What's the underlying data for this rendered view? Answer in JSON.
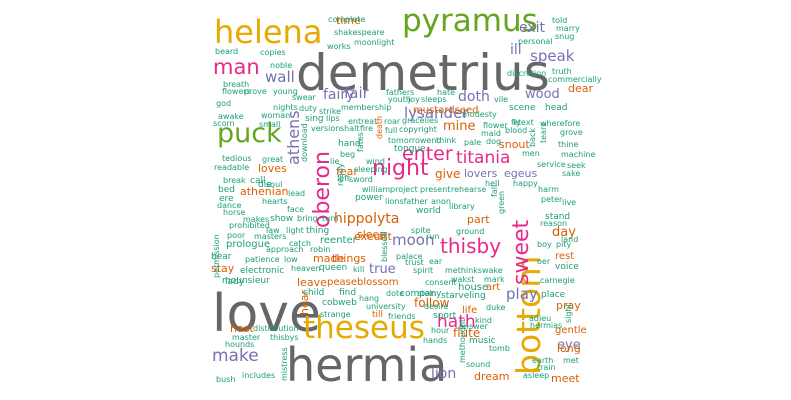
{
  "palette": {
    "teal": "#1b9e77",
    "orange": "#d95f02",
    "purple": "#7570b3",
    "magenta": "#e7298a",
    "green": "#66a61e",
    "gold": "#e6ab02",
    "gray": "#666666"
  },
  "words": [
    {
      "text": "demetrius",
      "color": "gray"
    },
    {
      "text": "love",
      "color": "gray"
    },
    {
      "text": "hermia",
      "color": "gray"
    },
    {
      "text": "theseus",
      "color": "gold"
    },
    {
      "text": "bottom",
      "color": "gold"
    },
    {
      "text": "helena",
      "color": "gold"
    },
    {
      "text": "pyramus",
      "color": "green"
    },
    {
      "text": "puck",
      "color": "green"
    },
    {
      "text": "sweet",
      "color": "magenta"
    },
    {
      "text": "thisby",
      "color": "magenta"
    },
    {
      "text": "night",
      "color": "magenta"
    },
    {
      "text": "man",
      "color": "magenta"
    },
    {
      "text": "oberon",
      "color": "magenta"
    },
    {
      "text": "enter",
      "color": "magenta"
    },
    {
      "text": "titania",
      "color": "magenta"
    },
    {
      "text": "hath",
      "color": "magenta"
    },
    {
      "text": "lysander",
      "color": "purple"
    },
    {
      "text": "make",
      "color": "purple"
    },
    {
      "text": "wall",
      "color": "purple"
    },
    {
      "text": "fair",
      "color": "purple"
    },
    {
      "text": "fairy",
      "color": "purple"
    },
    {
      "text": "moon",
      "color": "purple"
    },
    {
      "text": "play",
      "color": "purple"
    },
    {
      "text": "speak",
      "color": "purple"
    },
    {
      "text": "exit",
      "color": "purple"
    },
    {
      "text": "athens",
      "color": "purple"
    },
    {
      "text": "doth",
      "color": "purple"
    },
    {
      "text": "wood",
      "color": "purple"
    },
    {
      "text": "lion",
      "color": "purple"
    },
    {
      "text": "true",
      "color": "purple"
    },
    {
      "text": "eye",
      "color": "purple"
    },
    {
      "text": "ill",
      "color": "purple"
    },
    {
      "text": "hippolyta",
      "color": "orange"
    },
    {
      "text": "mine",
      "color": "orange"
    },
    {
      "text": "give",
      "color": "orange"
    },
    {
      "text": "day",
      "color": "orange"
    },
    {
      "text": "dear",
      "color": "orange"
    },
    {
      "text": "exeunt",
      "color": "orange"
    },
    {
      "text": "sleep",
      "color": "orange"
    },
    {
      "text": "loves",
      "color": "orange"
    },
    {
      "text": "follow",
      "color": "orange"
    },
    {
      "text": "flute",
      "color": "orange"
    },
    {
      "text": "long",
      "color": "orange"
    },
    {
      "text": "pray",
      "color": "orange"
    },
    {
      "text": "dream",
      "color": "orange"
    },
    {
      "text": "meet",
      "color": "orange"
    },
    {
      "text": "hast",
      "color": "orange"
    },
    {
      "text": "snout",
      "color": "orange"
    },
    {
      "text": "stay",
      "color": "orange"
    },
    {
      "text": "time",
      "color": "orange"
    },
    {
      "text": "athenian",
      "color": "orange"
    },
    {
      "text": "leave",
      "color": "orange"
    },
    {
      "text": "things",
      "color": "orange"
    },
    {
      "text": "made",
      "color": "orange"
    },
    {
      "text": "part",
      "color": "orange"
    },
    {
      "text": "art",
      "color": "orange"
    },
    {
      "text": "mustardseed",
      "color": "orange"
    },
    {
      "text": "peaseblossom",
      "color": "orange"
    },
    {
      "text": "gentle",
      "color": "orange"
    },
    {
      "text": "rest",
      "color": "orange"
    },
    {
      "text": "fear",
      "color": "orange"
    },
    {
      "text": "till",
      "color": "orange"
    },
    {
      "text": "hear",
      "color": "orange"
    },
    {
      "text": "life",
      "color": "orange"
    },
    {
      "text": "house",
      "color": "teal"
    },
    {
      "text": "egeus",
      "color": "purple"
    },
    {
      "text": "lovers",
      "color": "purple"
    },
    {
      "text": "reenter",
      "color": "teal"
    },
    {
      "text": "prologue",
      "color": "teal"
    },
    {
      "text": "queen",
      "color": "teal"
    },
    {
      "text": "cobweb",
      "color": "teal"
    },
    {
      "text": "child",
      "color": "teal"
    },
    {
      "text": "find",
      "color": "teal"
    },
    {
      "text": "electronic",
      "color": "teal"
    },
    {
      "text": "mounsieur",
      "color": "teal"
    },
    {
      "text": "starveling",
      "color": "teal"
    },
    {
      "text": "sport",
      "color": "teal"
    },
    {
      "text": "music",
      "color": "teal"
    },
    {
      "text": "place",
      "color": "teal"
    },
    {
      "text": "voice",
      "color": "teal"
    },
    {
      "text": "stand",
      "color": "teal"
    },
    {
      "text": "head",
      "color": "teal"
    },
    {
      "text": "scene",
      "color": "teal"
    },
    {
      "text": "tongue",
      "color": "teal"
    },
    {
      "text": "hand",
      "color": "teal"
    },
    {
      "text": "call",
      "color": "teal"
    },
    {
      "text": "die",
      "color": "teal"
    },
    {
      "text": "bed",
      "color": "teal"
    },
    {
      "text": "show",
      "color": "teal"
    },
    {
      "text": "thing",
      "color": "teal"
    },
    {
      "text": "power",
      "color": "teal"
    },
    {
      "text": "world",
      "color": "teal"
    },
    {
      "text": "company",
      "color": "teal"
    },
    {
      "text": "sing",
      "color": "teal"
    },
    {
      "text": "bear",
      "color": "teal"
    },
    {
      "text": "ere",
      "color": "teal"
    },
    {
      "text": "lady",
      "color": "teal"
    },
    {
      "text": "master",
      "color": "teal"
    },
    {
      "text": "hounds",
      "color": "teal"
    },
    {
      "text": "bush",
      "color": "teal"
    },
    {
      "text": "includes",
      "color": "teal"
    },
    {
      "text": "distribution",
      "color": "teal"
    },
    {
      "text": "thisbys",
      "color": "teal"
    },
    {
      "text": "strange",
      "color": "teal"
    },
    {
      "text": "friends",
      "color": "teal"
    },
    {
      "text": "hands",
      "color": "teal"
    },
    {
      "text": "hour",
      "color": "teal"
    },
    {
      "text": "answer",
      "color": "teal"
    },
    {
      "text": "sound",
      "color": "teal"
    },
    {
      "text": "earth",
      "color": "teal"
    },
    {
      "text": "train",
      "color": "teal"
    },
    {
      "text": "asleep",
      "color": "teal"
    },
    {
      "text": "adieu",
      "color": "teal"
    },
    {
      "text": "hermias",
      "color": "teal"
    },
    {
      "text": "met",
      "color": "teal"
    },
    {
      "text": "sight",
      "color": "teal"
    },
    {
      "text": "carnegie",
      "color": "teal"
    },
    {
      "text": "oer",
      "color": "teal"
    },
    {
      "text": "land",
      "color": "teal"
    },
    {
      "text": "pity",
      "color": "teal"
    },
    {
      "text": "boy",
      "color": "teal"
    },
    {
      "text": "reason",
      "color": "teal"
    },
    {
      "text": "peter",
      "color": "teal"
    },
    {
      "text": "live",
      "color": "teal"
    },
    {
      "text": "harm",
      "color": "teal"
    },
    {
      "text": "sake",
      "color": "teal"
    },
    {
      "text": "seek",
      "color": "teal"
    },
    {
      "text": "service",
      "color": "teal"
    },
    {
      "text": "machine",
      "color": "teal"
    },
    {
      "text": "men",
      "color": "teal"
    },
    {
      "text": "thine",
      "color": "teal"
    },
    {
      "text": "grove",
      "color": "teal"
    },
    {
      "text": "wherefore",
      "color": "teal"
    },
    {
      "text": "etext",
      "color": "teal"
    },
    {
      "text": "truth",
      "color": "teal"
    },
    {
      "text": "commercially",
      "color": "teal"
    },
    {
      "text": "discretion",
      "color": "teal"
    },
    {
      "text": "personal",
      "color": "teal"
    },
    {
      "text": "snug",
      "color": "teal"
    },
    {
      "text": "marry",
      "color": "teal"
    },
    {
      "text": "told",
      "color": "teal"
    },
    {
      "text": "complete",
      "color": "teal"
    },
    {
      "text": "shakespeare",
      "color": "teal"
    },
    {
      "text": "works",
      "color": "teal"
    },
    {
      "text": "moonlight",
      "color": "teal"
    },
    {
      "text": "beard",
      "color": "teal"
    },
    {
      "text": "copies",
      "color": "teal"
    },
    {
      "text": "noble",
      "color": "teal"
    },
    {
      "text": "breath",
      "color": "teal"
    },
    {
      "text": "flowers",
      "color": "teal"
    },
    {
      "text": "prove",
      "color": "teal"
    },
    {
      "text": "young",
      "color": "teal"
    },
    {
      "text": "swear",
      "color": "teal"
    },
    {
      "text": "god",
      "color": "teal"
    },
    {
      "text": "awake",
      "color": "teal"
    },
    {
      "text": "scorn",
      "color": "teal"
    },
    {
      "text": "woman",
      "color": "teal"
    },
    {
      "text": "small",
      "color": "teal"
    },
    {
      "text": "nights",
      "color": "teal"
    },
    {
      "text": "duty",
      "color": "teal"
    },
    {
      "text": "strike",
      "color": "teal"
    },
    {
      "text": "membership",
      "color": "teal"
    },
    {
      "text": "fathers",
      "color": "teal"
    },
    {
      "text": "youth",
      "color": "teal"
    },
    {
      "text": "joy",
      "color": "teal"
    },
    {
      "text": "sleeps",
      "color": "teal"
    },
    {
      "text": "hate",
      "color": "teal"
    },
    {
      "text": "modesty",
      "color": "teal"
    },
    {
      "text": "vile",
      "color": "teal"
    },
    {
      "text": "lips",
      "color": "teal"
    },
    {
      "text": "version",
      "color": "teal"
    },
    {
      "text": "shalt",
      "color": "teal"
    },
    {
      "text": "fire",
      "color": "teal"
    },
    {
      "text": "entreat",
      "color": "teal"
    },
    {
      "text": "roar",
      "color": "teal"
    },
    {
      "text": "gracelies",
      "color": "teal"
    },
    {
      "text": "copyright",
      "color": "teal"
    },
    {
      "text": "tomorrowend",
      "color": "teal"
    },
    {
      "text": "think",
      "color": "teal"
    },
    {
      "text": "pale",
      "color": "teal"
    },
    {
      "text": "dog",
      "color": "teal"
    },
    {
      "text": "flower",
      "color": "teal"
    },
    {
      "text": "maid",
      "color": "teal"
    },
    {
      "text": "blood",
      "color": "teal"
    },
    {
      "text": "fly",
      "color": "teal"
    },
    {
      "text": "sleeping",
      "color": "teal"
    },
    {
      "text": "full",
      "color": "teal"
    },
    {
      "text": "death",
      "color": "orange"
    },
    {
      "text": "tedious",
      "color": "teal"
    },
    {
      "text": "readable",
      "color": "teal"
    },
    {
      "text": "great",
      "color": "teal"
    },
    {
      "text": "break",
      "color": "teal"
    },
    {
      "text": "soul",
      "color": "teal"
    },
    {
      "text": "lead",
      "color": "teal"
    },
    {
      "text": "dance",
      "color": "teal"
    },
    {
      "text": "hearts",
      "color": "teal"
    },
    {
      "text": "horse",
      "color": "teal"
    },
    {
      "text": "makes",
      "color": "teal"
    },
    {
      "text": "masters",
      "color": "teal"
    },
    {
      "text": "prohibited",
      "color": "teal"
    },
    {
      "text": "law",
      "color": "teal"
    },
    {
      "text": "poor",
      "color": "teal"
    },
    {
      "text": "approach",
      "color": "teal"
    },
    {
      "text": "patience",
      "color": "teal"
    },
    {
      "text": "low",
      "color": "teal"
    },
    {
      "text": "heaven",
      "color": "teal"
    },
    {
      "text": "catch",
      "color": "teal"
    },
    {
      "text": "robin",
      "color": "teal"
    },
    {
      "text": "bring",
      "color": "teal"
    },
    {
      "text": "turn",
      "color": "teal"
    },
    {
      "text": "face",
      "color": "teal"
    },
    {
      "text": "light",
      "color": "teal"
    },
    {
      "text": "kill",
      "color": "teal"
    },
    {
      "text": "left",
      "color": "teal"
    },
    {
      "text": "sword",
      "color": "teal"
    },
    {
      "text": "wind",
      "color": "teal"
    },
    {
      "text": "william",
      "color": "teal"
    },
    {
      "text": "project",
      "color": "teal"
    },
    {
      "text": "present",
      "color": "teal"
    },
    {
      "text": "rehearse",
      "color": "teal"
    },
    {
      "text": "lionsfather",
      "color": "teal"
    },
    {
      "text": "anon",
      "color": "teal"
    },
    {
      "text": "library",
      "color": "teal"
    },
    {
      "text": "spite",
      "color": "teal"
    },
    {
      "text": "ground",
      "color": "teal"
    },
    {
      "text": "run",
      "color": "teal"
    },
    {
      "text": "trust",
      "color": "teal"
    },
    {
      "text": "ear",
      "color": "teal"
    },
    {
      "text": "palace",
      "color": "teal"
    },
    {
      "text": "spirit",
      "color": "teal"
    },
    {
      "text": "methinkswake",
      "color": "teal"
    },
    {
      "text": "consent",
      "color": "teal"
    },
    {
      "text": "wakst",
      "color": "teal"
    },
    {
      "text": "mark",
      "color": "teal"
    },
    {
      "text": "hang",
      "color": "teal"
    },
    {
      "text": "dote",
      "color": "teal"
    },
    {
      "text": "stoln",
      "color": "teal"
    },
    {
      "text": "university",
      "color": "teal"
    },
    {
      "text": "desire",
      "color": "teal"
    },
    {
      "text": "kind",
      "color": "teal"
    },
    {
      "text": "tomb",
      "color": "teal"
    },
    {
      "text": "duke",
      "color": "teal"
    },
    {
      "text": "beg",
      "color": "teal"
    },
    {
      "text": "lie",
      "color": "teal"
    },
    {
      "text": "ready",
      "color": "teal"
    },
    {
      "text": "hell",
      "color": "teal"
    },
    {
      "text": "happy",
      "color": "teal"
    },
    {
      "text": "green",
      "color": "teal"
    },
    {
      "text": "permission",
      "color": "teal"
    },
    {
      "text": "download",
      "color": "teal"
    },
    {
      "text": "mistress",
      "color": "teal"
    },
    {
      "text": "methought",
      "color": "teal"
    },
    {
      "text": "blessed",
      "color": "teal"
    },
    {
      "text": "tears",
      "color": "teal"
    },
    {
      "text": "back",
      "color": "teal"
    },
    {
      "text": "fall",
      "color": "teal"
    },
    {
      "text": "fates",
      "color": "teal"
    }
  ]
}
